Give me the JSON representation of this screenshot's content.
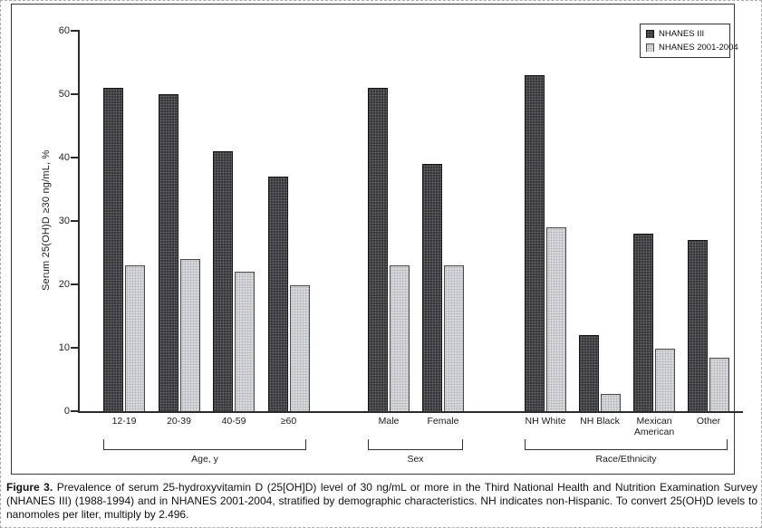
{
  "figure": {
    "caption_label": "Figure 3.",
    "caption_text": " Prevalence of serum 25-hydroxyvitamin D (25[OH]D) level of 30 ng/mL or more in the Third National Health and Nutrition Examination Survey (NHANES III) (1988-1994) and in NHANES 2001-2004, stratified by demographic characteristics. NH indicates non-Hispanic. To convert 25(OH)D levels to nanomoles per liter, multiply by 2.496."
  },
  "chart_data": {
    "type": "bar",
    "title": "",
    "xlabel": "",
    "ylabel": "Serum 25(OH)D ≥30 ng/mL, %",
    "ylim": [
      0,
      60
    ],
    "yticks": [
      0,
      10,
      20,
      30,
      40,
      50,
      60
    ],
    "grid": false,
    "legend_position": "top-right",
    "series_names": [
      "NHANES III",
      "NHANES 2001-2004"
    ],
    "colors": {
      "nhanes_iii": "#38383b",
      "nhanes_2001_2004": "#d8d8d8"
    },
    "groups": [
      {
        "label": "Age, y",
        "categories": [
          "12-19",
          "20-39",
          "40-59",
          "≥60"
        ],
        "series": [
          {
            "name": "NHANES III",
            "values": [
              51,
              50,
              41,
              37
            ]
          },
          {
            "name": "NHANES 2001-2004",
            "values": [
              23,
              24,
              22,
              19.8
            ]
          }
        ]
      },
      {
        "label": "Sex",
        "categories": [
          "Male",
          "Female"
        ],
        "series": [
          {
            "name": "NHANES III",
            "values": [
              51,
              39
            ]
          },
          {
            "name": "NHANES 2001-2004",
            "values": [
              23,
              23
            ]
          }
        ]
      },
      {
        "label": "Race/Ethnicity",
        "categories": [
          "NH White",
          "NH Black",
          "Mexican American",
          "Other"
        ],
        "series": [
          {
            "name": "NHANES III",
            "values": [
              53,
              12,
              28,
              27
            ]
          },
          {
            "name": "NHANES 2001-2004",
            "values": [
              29,
              2.7,
              9.8,
              8.5
            ]
          }
        ]
      }
    ]
  },
  "legend": {
    "items": [
      {
        "label": "NHANES III"
      },
      {
        "label": "NHANES 2001-2004"
      }
    ]
  }
}
